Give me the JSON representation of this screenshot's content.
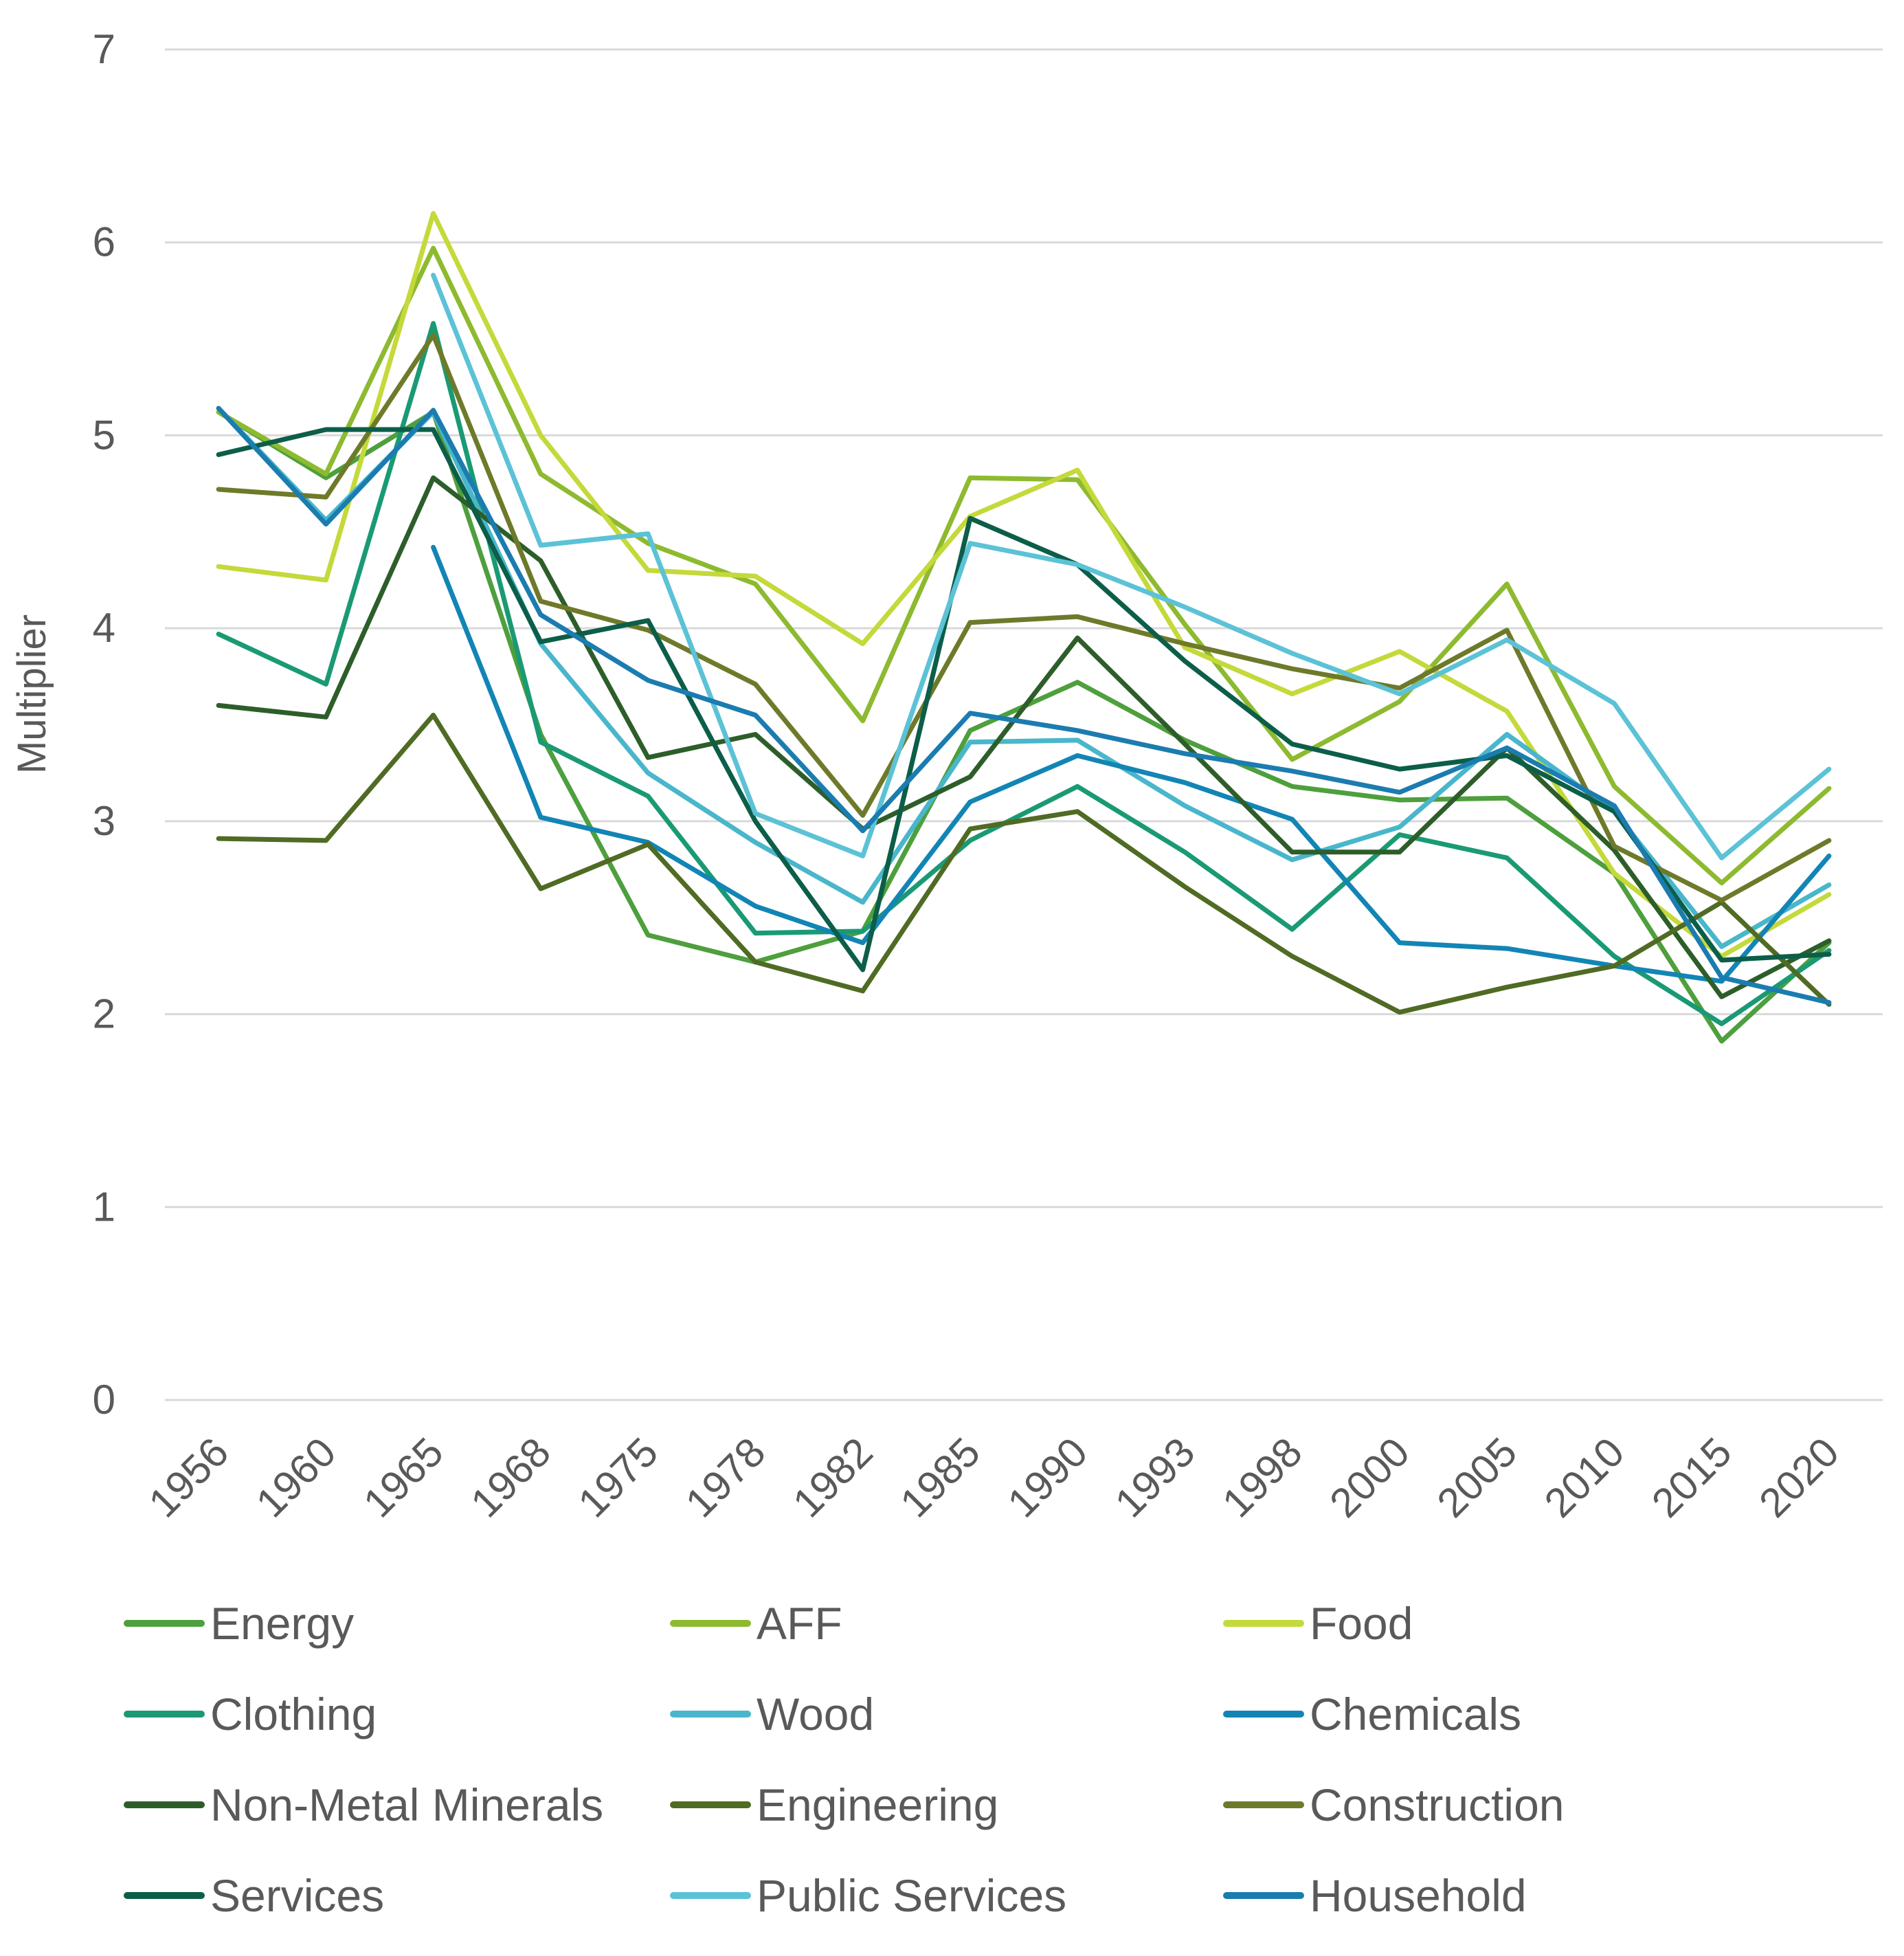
{
  "chart_data": {
    "type": "line",
    "title": "",
    "xlabel": "",
    "ylabel": "Multiplier",
    "ylim": [
      0,
      7
    ],
    "yticks": [
      0,
      1,
      2,
      3,
      4,
      5,
      6,
      7
    ],
    "grid": "horizontal",
    "legend_position": "bottom",
    "categories": [
      "1956",
      "1960",
      "1965",
      "1968",
      "1975",
      "1978",
      "1982",
      "1985",
      "1990",
      "1993",
      "1998",
      "2000",
      "2005",
      "2010",
      "2015",
      "2020"
    ],
    "series": [
      {
        "name": "Energy",
        "color": "#4E9F3D",
        "values": [
          5.12,
          4.78,
          5.12,
          3.45,
          2.41,
          2.27,
          2.43,
          3.47,
          3.72,
          3.42,
          3.18,
          3.11,
          3.12,
          2.73,
          1.86,
          2.37
        ]
      },
      {
        "name": "AFF",
        "color": "#8DBA2F",
        "values": [
          5.12,
          4.8,
          5.97,
          4.8,
          4.44,
          4.23,
          3.52,
          4.78,
          4.77,
          4.02,
          3.32,
          3.62,
          4.23,
          3.18,
          2.68,
          3.17
        ]
      },
      {
        "name": "Food",
        "color": "#C4D93A",
        "values": [
          4.32,
          4.25,
          6.15,
          5.0,
          4.3,
          4.27,
          3.92,
          4.58,
          4.82,
          3.9,
          3.66,
          3.88,
          3.57,
          2.73,
          2.3,
          2.62
        ]
      },
      {
        "name": "Clothing",
        "color": "#1A9A74",
        "values": [
          3.97,
          3.71,
          5.58,
          3.41,
          3.13,
          2.42,
          2.43,
          2.9,
          3.18,
          2.84,
          2.44,
          2.93,
          2.81,
          2.3,
          1.95,
          2.33
        ]
      },
      {
        "name": "Wood",
        "color": "#49B6CC",
        "values": [
          5.14,
          4.56,
          5.12,
          3.92,
          3.25,
          2.89,
          2.58,
          3.41,
          3.42,
          3.08,
          2.8,
          2.97,
          3.45,
          3.05,
          2.35,
          2.67
        ]
      },
      {
        "name": "Chemicals",
        "color": "#1285B5",
        "values": [
          null,
          null,
          4.42,
          3.02,
          2.89,
          2.56,
          2.37,
          3.1,
          3.34,
          3.2,
          3.01,
          2.37,
          2.34,
          2.25,
          2.17,
          2.82
        ]
      },
      {
        "name": "Non-Metal Minerals",
        "color": "#2D5E2A",
        "values": [
          3.6,
          3.54,
          4.78,
          4.35,
          3.33,
          3.45,
          2.96,
          3.23,
          3.95,
          3.4,
          2.84,
          2.84,
          3.38,
          2.85,
          2.09,
          2.38
        ]
      },
      {
        "name": "Engineering",
        "color": "#4F6B24",
        "values": [
          2.91,
          2.9,
          3.55,
          2.65,
          2.88,
          2.27,
          2.12,
          2.96,
          3.05,
          2.66,
          2.3,
          2.01,
          2.14,
          2.25,
          2.58,
          2.05
        ]
      },
      {
        "name": "Construction",
        "color": "#6E7A2A",
        "values": [
          4.72,
          4.68,
          5.52,
          4.14,
          3.99,
          3.71,
          3.03,
          4.03,
          4.06,
          3.92,
          3.79,
          3.69,
          3.99,
          2.87,
          2.59,
          2.9
        ]
      },
      {
        "name": "Services",
        "color": "#0C5E49",
        "values": [
          4.9,
          5.03,
          5.03,
          3.93,
          4.04,
          3.0,
          2.23,
          4.57,
          4.33,
          3.83,
          3.4,
          3.27,
          3.34,
          3.05,
          2.28,
          2.31
        ]
      },
      {
        "name": "Public Services",
        "color": "#5CC2D6",
        "values": [
          null,
          null,
          5.83,
          4.43,
          4.49,
          3.04,
          2.82,
          4.44,
          4.33,
          4.11,
          3.87,
          3.66,
          3.94,
          3.61,
          2.81,
          3.27
        ]
      },
      {
        "name": "Household",
        "color": "#1B7CB0",
        "values": [
          5.14,
          4.54,
          5.13,
          4.07,
          3.73,
          3.55,
          2.95,
          3.56,
          3.47,
          3.35,
          3.26,
          3.15,
          3.38,
          3.08,
          2.19,
          2.06
        ]
      }
    ]
  }
}
